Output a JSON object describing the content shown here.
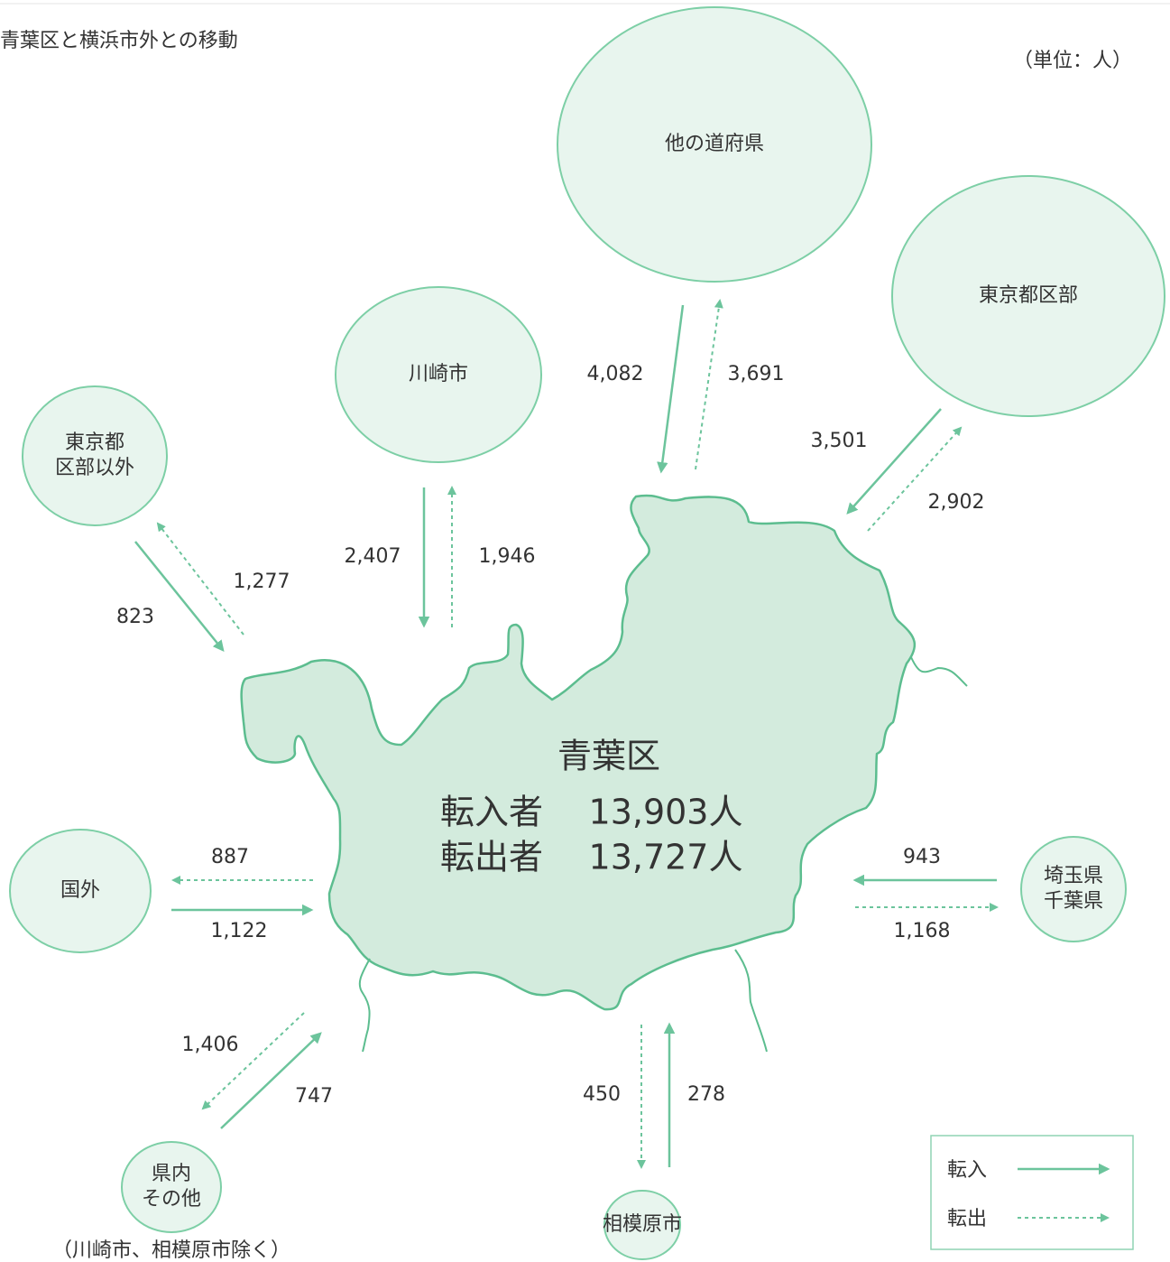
{
  "title": "青葉区と横浜市外との移動",
  "unit": "（単位：人）",
  "center": {
    "name": "青葉区",
    "rows": [
      {
        "label": "転入者",
        "value": "13,903人"
      },
      {
        "label": "転出者",
        "value": "13,727人"
      }
    ]
  },
  "nodes": [
    {
      "label": [
        "他の道府県"
      ],
      "in": "4,082",
      "out": "3,691"
    },
    {
      "label": [
        "東京都区部"
      ],
      "in": "3,501",
      "out": "2,902"
    },
    {
      "label": [
        "川崎市"
      ],
      "in": "2,407",
      "out": "1,946"
    },
    {
      "label": [
        "東京都",
        "区部以外"
      ],
      "in": "823",
      "out": "1,277"
    },
    {
      "label": [
        "国外"
      ],
      "in": "1,122",
      "out": "887"
    },
    {
      "label": [
        "埼玉県",
        "千葉県"
      ],
      "in": "943",
      "out": "1,168"
    },
    {
      "label": [
        "県内",
        "その他"
      ],
      "in": "747",
      "out": "1,406",
      "note": "（川崎市、相模原市除く）"
    },
    {
      "label": [
        "相模原市"
      ],
      "in": "278",
      "out": "450"
    }
  ],
  "legend": {
    "in": "転入",
    "out": "転出"
  }
}
